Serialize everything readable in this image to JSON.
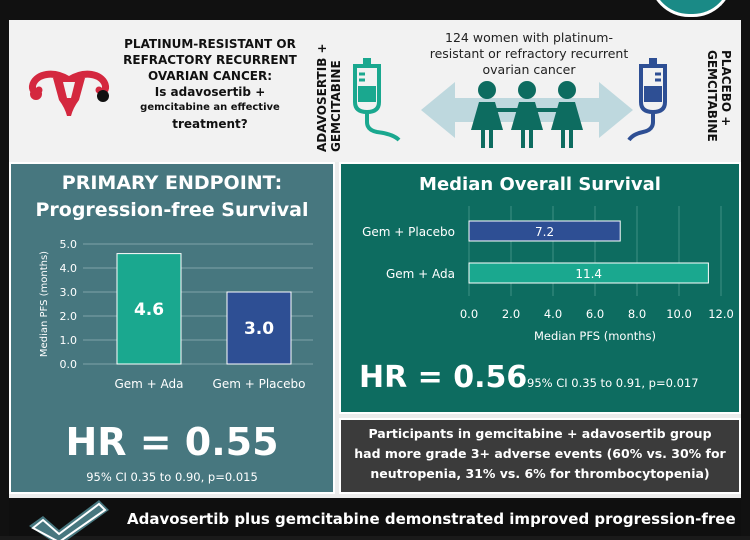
{
  "header": {
    "question_line1": "PLATINUM-RESISTANT OR",
    "question_line2": "REFRACTORY RECURRENT",
    "question_line3": "OVARIAN CANCER:",
    "question_line4": "Is adavosertib +",
    "question_line5": "gemcitabine an effective",
    "question_line6": "treatment?",
    "arm_left_line1": "ADAVOSERTIB +",
    "arm_left_line2": "GEMCITABINE",
    "arm_right_line1": "PLACEBO +",
    "arm_right_line2": "GEMCITABINE",
    "trial_line1": "124 women with platinum-",
    "trial_line2": "resistant or refractory recurrent",
    "trial_line3": "ovarian cancer"
  },
  "pfs": {
    "title_line1": "PRIMARY ENDPOINT:",
    "title_line2": "Progression-free Survival",
    "hr": "HR = 0.55",
    "ci": "95% CI 0.35 to 0.90, p=0.015"
  },
  "os": {
    "title": "Median Overall Survival",
    "hr": "HR = 0.56",
    "ci": "95% CI 0.35 to 0.91, p=0.017"
  },
  "adverse_events": {
    "line1": "Participants in gemcitabine + adavosertib group",
    "line2": "had more grade 3+ adverse events (60% vs. 30% for",
    "line3": "neutropenia, 31% vs. 6% for thrombocytopenia)"
  },
  "footer": {
    "text": "Adavosertib plus gemcitabine demonstrated improved progression-free"
  },
  "colors": {
    "teal_bar": "#1aa88f",
    "navy_bar": "#2e4f94",
    "panel_left": "#47777f",
    "panel_right": "#0d6c60",
    "uterus": "#d4283f"
  },
  "icons": [
    "uterus-icon",
    "iv-bag-icon",
    "double-arrow-icon",
    "women-icon",
    "checkmark-icon"
  ],
  "chart_data": [
    {
      "type": "bar",
      "categories": [
        "Gem + Ada",
        "Gem + Placebo"
      ],
      "values": [
        4.6,
        3.0
      ],
      "value_labels": [
        "4.6",
        "3.0"
      ],
      "ylabel": "Median PFS (months)",
      "ylim": [
        0,
        5
      ],
      "yticks": [
        "0.0",
        "1.0",
        "2.0",
        "3.0",
        "4.0",
        "5.0"
      ],
      "grid": true,
      "orientation": "vertical"
    },
    {
      "type": "bar",
      "orientation": "horizontal",
      "categories": [
        "Gem + Placebo",
        "Gem + Ada"
      ],
      "values": [
        7.2,
        11.4
      ],
      "value_labels": [
        "7.2",
        "11.4"
      ],
      "xlabel": "Median PFS (months)",
      "xlim": [
        0,
        12
      ],
      "xticks": [
        "0.0",
        "2.0",
        "4.0",
        "6.0",
        "8.0",
        "10.0",
        "12.0"
      ],
      "grid": true
    }
  ]
}
